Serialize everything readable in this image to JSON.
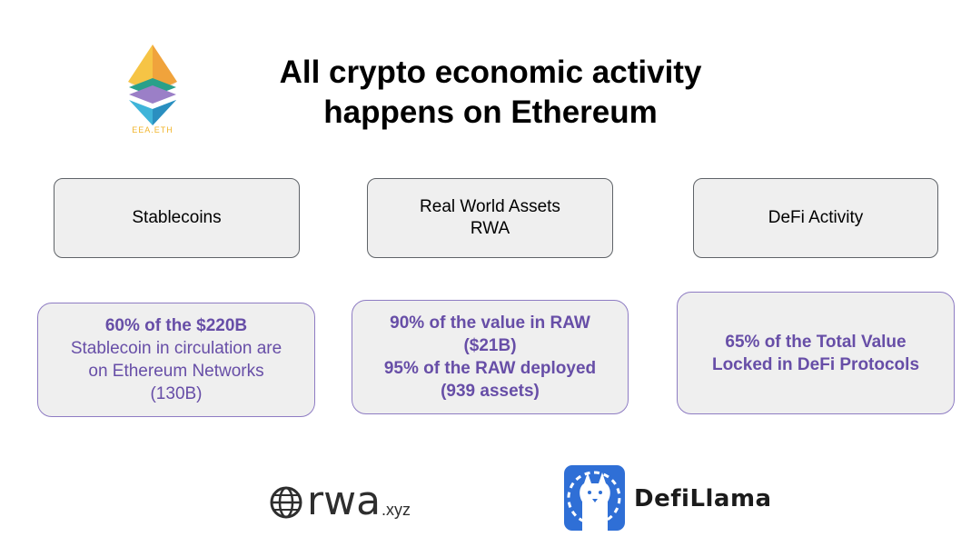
{
  "title": {
    "line1": "All crypto economic activity",
    "line2": "happens on Ethereum"
  },
  "eea_logo": {
    "text": "EEA.ETH",
    "icon": "ethereum-diamond-icon"
  },
  "categories": [
    {
      "lines": [
        "Stablecoins"
      ]
    },
    {
      "lines": [
        "Real World Assets",
        "RWA"
      ]
    },
    {
      "lines": [
        "DeFi Activity"
      ]
    }
  ],
  "stats": {
    "stablecoins": {
      "line1": "60% of the $220B",
      "line2": "Stablecoin in circulation are",
      "line3": "on Ethereum Networks",
      "line4": "(130B)"
    },
    "rwa": {
      "line1": "90% of the value in RAW",
      "line2": "($21B)",
      "line3": "95% of the RAW deployed",
      "line4": "(939 assets)"
    },
    "defi": {
      "line1": "65% of the Total Value",
      "line2": "Locked in DeFi Protocols"
    }
  },
  "sources": {
    "rwa": {
      "word": "rwa",
      "suffix": ".xyz",
      "icon": "globe-icon"
    },
    "defillama": {
      "word": "DefiLlama",
      "icon": "llama-icon"
    }
  },
  "colors": {
    "accent_text": "#674ea7",
    "box_border": "#8e7cc3",
    "box_fill": "#efefef",
    "llama_blue": "#2f6fd6"
  }
}
